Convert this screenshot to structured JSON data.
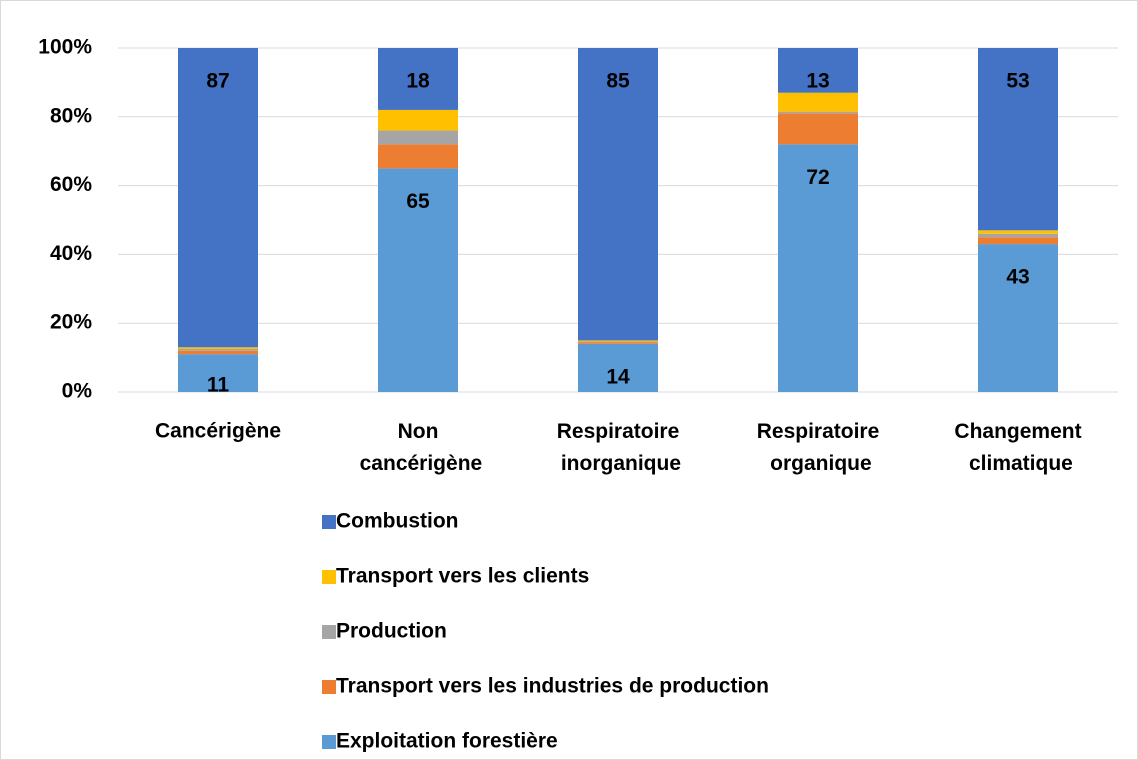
{
  "chart_data": {
    "type": "stacked_bar",
    "categories": [
      "Cancérigène",
      "Non cancérigène",
      "Respiratoire inorganique",
      "Respiratoire organique",
      "Changement climatique"
    ],
    "series": [
      {
        "name": "Exploitation forestière",
        "color": "#5b9bd5",
        "values": [
          11,
          65,
          14,
          72,
          43
        ],
        "data_labels": true
      },
      {
        "name": "Transport vers les industries de production",
        "color": "#ed7d31",
        "values": [
          1,
          7,
          0.5,
          9,
          2
        ],
        "data_labels": false
      },
      {
        "name": "Production",
        "color": "#a5a5a5",
        "values": [
          0.5,
          4,
          0.2,
          0.5,
          1
        ],
        "data_labels": false
      },
      {
        "name": "Transport vers les clients",
        "color": "#ffc000",
        "values": [
          0.5,
          6,
          0.3,
          5.5,
          1
        ],
        "data_labels": false
      },
      {
        "name": "Combustion",
        "color": "#4472c4",
        "values": [
          87,
          18,
          85,
          13,
          53
        ],
        "data_labels": true
      }
    ],
    "ylim": [
      0,
      100
    ],
    "yticks": [
      {
        "value": 0,
        "label": "0%"
      },
      {
        "value": 20,
        "label": "20%"
      },
      {
        "value": 40,
        "label": "40%"
      },
      {
        "value": 60,
        "label": "60%"
      },
      {
        "value": 80,
        "label": "80%"
      },
      {
        "value": 100,
        "label": "100%"
      }
    ],
    "grid": true
  }
}
